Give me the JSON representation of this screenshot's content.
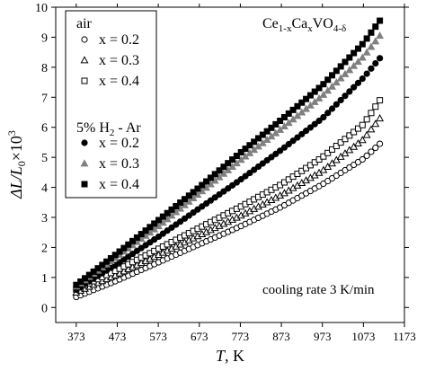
{
  "chart_data": {
    "type": "scatter",
    "title": "",
    "xlabel": {
      "italic": "T",
      "rest": ", K"
    },
    "ylabel": {
      "a": "ΔL/L",
      "sub": "0",
      "b": "×10",
      "sup": "3"
    },
    "xlim": [
      323,
      1173
    ],
    "ylim": [
      -0.5,
      10
    ],
    "x_ticks": [
      373,
      473,
      573,
      673,
      773,
      873,
      973,
      1073,
      1173
    ],
    "x_tick_labels": [
      "373",
      "473",
      "573",
      "673",
      "773",
      "873",
      "973",
      "1073",
      "1173"
    ],
    "y_ticks": [
      0,
      1,
      2,
      3,
      4,
      5,
      6,
      7,
      8,
      9,
      10
    ],
    "y_tick_labels": [
      "0",
      "1",
      "2",
      "3",
      "4",
      "5",
      "6",
      "7",
      "8",
      "9",
      "10"
    ],
    "grid": false,
    "legend_position": "top-left",
    "formula": {
      "base": "Ce",
      "s1": "1-x",
      "m1": "Ca",
      "s2": "x",
      "m2": "VO",
      "s3": "4-δ"
    },
    "annotation": "cooling rate 3 K/min",
    "legend_groups": [
      {
        "label": "air",
        "series": [
          0,
          1,
          2
        ]
      },
      {
        "label_parts": {
          "a": "5% H",
          "sub": "2",
          "b": " - Ar"
        },
        "series": [
          3,
          4,
          5
        ]
      }
    ],
    "series": [
      {
        "name": "x = 0.2",
        "marker": "circle-open",
        "color": "#000000",
        "x": [
          373,
          473,
          573,
          673,
          773,
          873,
          973,
          1073,
          1113
        ],
        "y": [
          0.35,
          0.9,
          1.5,
          2.1,
          2.7,
          3.35,
          4.1,
          4.95,
          5.45
        ]
      },
      {
        "name": "x = 0.3",
        "marker": "triangle-open",
        "color": "#000000",
        "x": [
          373,
          473,
          573,
          673,
          773,
          873,
          973,
          1073,
          1113
        ],
        "y": [
          0.5,
          1.1,
          1.75,
          2.4,
          3.05,
          3.75,
          4.55,
          5.6,
          6.3
        ]
      },
      {
        "name": "x = 0.4",
        "marker": "square-open",
        "color": "#000000",
        "x": [
          373,
          473,
          573,
          673,
          773,
          873,
          973,
          1073,
          1113
        ],
        "y": [
          0.6,
          1.25,
          1.95,
          2.65,
          3.35,
          4.1,
          5.0,
          6.1,
          6.9
        ]
      },
      {
        "name": "x = 0.2",
        "marker": "circle-filled",
        "color": "#000000",
        "x": [
          373,
          473,
          573,
          673,
          773,
          873,
          973,
          1073,
          1113
        ],
        "y": [
          0.6,
          1.45,
          2.35,
          3.3,
          4.25,
          5.25,
          6.3,
          7.65,
          8.3
        ]
      },
      {
        "name": "x = 0.3",
        "marker": "triangle-filled",
        "color": "#808080",
        "x": [
          373,
          473,
          573,
          673,
          773,
          873,
          973,
          1073,
          1113
        ],
        "y": [
          0.7,
          1.7,
          2.7,
          3.8,
          4.9,
          5.95,
          7.05,
          8.35,
          9.05
        ]
      },
      {
        "name": "x = 0.4",
        "marker": "square-filled",
        "color": "#000000",
        "x": [
          373,
          473,
          573,
          673,
          773,
          873,
          973,
          1073,
          1113
        ],
        "y": [
          0.75,
          1.8,
          2.9,
          4.0,
          5.15,
          6.25,
          7.4,
          8.8,
          9.55
        ]
      }
    ]
  }
}
